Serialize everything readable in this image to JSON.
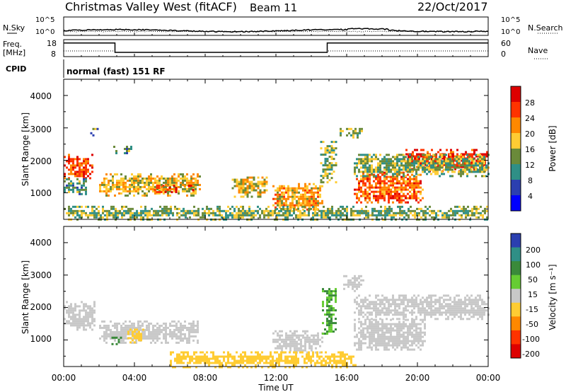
{
  "header": {
    "station": "Christmas Valley West (fitACF)",
    "beam": "Beam 11",
    "date": "22/Oct/2017",
    "mode": "normal (fast) 151 RF"
  },
  "top_panels": {
    "nsky_label": "N.Sky",
    "nsearch_label": "N.Search",
    "noise_ticks": [
      "10^5",
      "10^0"
    ],
    "freq_label_1": "Freq.",
    "freq_label_2": "[MHz]",
    "freq_ticks": [
      "18",
      "8"
    ],
    "nave_label": "Nave",
    "nave_ticks": [
      "60",
      "0"
    ],
    "cpid_label": "CPID"
  },
  "x_axis": {
    "title": "Time UT",
    "ticks": [
      "00:00",
      "04:00",
      "08:00",
      "12:00",
      "16:00",
      "20:00",
      "00:00"
    ]
  },
  "y_axis": {
    "title": "Slant Range [km]",
    "ticks": [
      "4000",
      "3000",
      "2000",
      "1000"
    ]
  },
  "colorbars": {
    "power": {
      "title": "Power [dB]",
      "labels": [
        "28",
        "24",
        "20",
        "16",
        "12",
        "8",
        "4"
      ],
      "colors": [
        "#dd0000",
        "#ff3300",
        "#ff8800",
        "#ffcc33",
        "#6a8a3a",
        "#2f8f86",
        "#2b3fb0",
        "#0000ff"
      ]
    },
    "velocity": {
      "title": "Velocity [m s⁻¹]",
      "labels": [
        "200",
        "100",
        "50",
        "15",
        "-15",
        "-50",
        "-100",
        "-200"
      ],
      "colors": [
        "#2b3fb0",
        "#2f8f86",
        "#3a8a3a",
        "#66cc33",
        "#c8c8c8",
        "#ffcc33",
        "#ff8800",
        "#ff3300",
        "#dd0000"
      ]
    }
  },
  "chart_data": {
    "type": "heatmap",
    "title": "Christmas Valley West (fitACF) Beam 11 22/Oct/2017",
    "xlabel": "Time UT",
    "ylabel": "Slant Range [km]",
    "xlim": [
      "00:00",
      "24:00"
    ],
    "ylim": [
      180,
      4500
    ],
    "panels": [
      {
        "name": "Power [dB]",
        "regions": [
          {
            "t0": 0.0,
            "t1": 1.6,
            "r0": 1450,
            "r1": 2200,
            "value": 26
          },
          {
            "t0": 0.0,
            "t1": 1.3,
            "r0": 950,
            "r1": 1450,
            "value": 12
          },
          {
            "t0": 1.5,
            "t1": 2.0,
            "r0": 2800,
            "r1": 3000,
            "value": 12
          },
          {
            "t0": 2.8,
            "t1": 3.8,
            "r0": 2250,
            "r1": 2450,
            "value": 12
          },
          {
            "t0": 2.0,
            "t1": 7.7,
            "r0": 900,
            "r1": 1600,
            "value": 18
          },
          {
            "t0": 5.1,
            "t1": 7.3,
            "r0": 1050,
            "r1": 1250,
            "value": 26
          },
          {
            "t0": 9.5,
            "t1": 11.5,
            "r0": 900,
            "r1": 1500,
            "value": 18
          },
          {
            "t0": 11.8,
            "t1": 14.6,
            "r0": 500,
            "r1": 1300,
            "value": 20
          },
          {
            "t0": 14.5,
            "t1": 15.4,
            "r0": 1300,
            "r1": 2600,
            "value": 14
          },
          {
            "t0": 15.6,
            "t1": 16.9,
            "r0": 2700,
            "r1": 3000,
            "value": 14
          },
          {
            "t0": 16.4,
            "t1": 20.3,
            "r0": 700,
            "r1": 1650,
            "value": 24
          },
          {
            "t0": 19.2,
            "t1": 24.0,
            "r0": 1650,
            "r1": 2350,
            "value": 27
          },
          {
            "t0": 16.4,
            "t1": 24.0,
            "r0": 1500,
            "r1": 2200,
            "value": 14
          },
          {
            "t0": 0.0,
            "t1": 24.0,
            "r0": 180,
            "r1": 600,
            "value": 14
          }
        ]
      },
      {
        "name": "Velocity [m s⁻¹]",
        "regions": [
          {
            "t0": 0.0,
            "t1": 1.8,
            "r0": 1300,
            "r1": 2200,
            "value": 0
          },
          {
            "t0": 2.0,
            "t1": 7.6,
            "r0": 900,
            "r1": 1600,
            "value": 0
          },
          {
            "t0": 3.6,
            "t1": 4.6,
            "r0": 900,
            "r1": 1350,
            "value": -40
          },
          {
            "t0": 2.7,
            "t1": 3.2,
            "r0": 900,
            "r1": 1100,
            "value": 40
          },
          {
            "t0": 11.8,
            "t1": 14.6,
            "r0": 600,
            "r1": 1300,
            "value": 0
          },
          {
            "t0": 14.6,
            "t1": 15.4,
            "r0": 1200,
            "r1": 2600,
            "value": 30
          },
          {
            "t0": 15.8,
            "t1": 17.0,
            "r0": 2500,
            "r1": 3000,
            "value": 0
          },
          {
            "t0": 16.4,
            "t1": 20.4,
            "r0": 700,
            "r1": 1650,
            "value": 0
          },
          {
            "t0": 16.4,
            "t1": 24.0,
            "r0": 1650,
            "r1": 2400,
            "value": 0
          },
          {
            "t0": 6.0,
            "t1": 16.5,
            "r0": 180,
            "r1": 650,
            "value": -40
          }
        ]
      }
    ],
    "frequency_MHz": {
      "t": [
        0.0,
        2.9,
        2.9,
        14.9,
        14.9,
        24.0
      ],
      "f": [
        16,
        16,
        10.5,
        10.5,
        16,
        16
      ]
    }
  }
}
